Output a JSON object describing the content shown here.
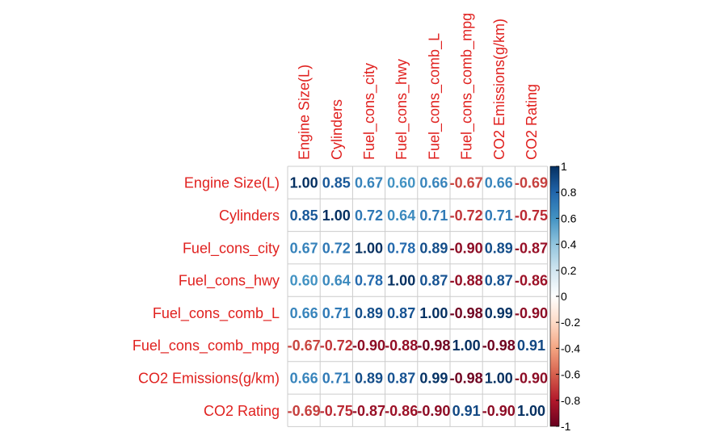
{
  "chart_data": {
    "type": "heatmap",
    "variables": [
      "Engine Size(L)",
      "Cylinders",
      "Fuel_cons_city",
      "Fuel_cons_hwy",
      "Fuel_cons_comb_L",
      "Fuel_cons_comb_mpg",
      "CO2 Emissions(g/km)",
      "CO2 Rating"
    ],
    "matrix": [
      [
        1.0,
        0.85,
        0.67,
        0.6,
        0.66,
        -0.67,
        0.66,
        -0.69
      ],
      [
        0.85,
        1.0,
        0.72,
        0.64,
        0.71,
        -0.72,
        0.71,
        -0.75
      ],
      [
        0.67,
        0.72,
        1.0,
        0.78,
        0.89,
        -0.9,
        0.89,
        -0.87
      ],
      [
        0.6,
        0.64,
        0.78,
        1.0,
        0.87,
        -0.88,
        0.87,
        -0.86
      ],
      [
        0.66,
        0.71,
        0.89,
        0.87,
        1.0,
        -0.98,
        0.99,
        -0.9
      ],
      [
        -0.67,
        -0.72,
        -0.9,
        -0.88,
        -0.98,
        1.0,
        -0.98,
        0.91
      ],
      [
        0.66,
        0.71,
        0.89,
        0.87,
        0.99,
        -0.98,
        1.0,
        -0.9
      ],
      [
        -0.69,
        -0.75,
        -0.87,
        -0.86,
        -0.9,
        0.91,
        -0.9,
        1.0
      ]
    ],
    "colorbar": {
      "range": [
        -1,
        1
      ],
      "ticks": [
        "1",
        "0.8",
        "0.6",
        "0.4",
        "0.2",
        "0",
        "-0.2",
        "-0.4",
        "-0.6",
        "-0.8",
        "-1"
      ],
      "colors": [
        "#67001f",
        "#b2182b",
        "#d6604d",
        "#f4a582",
        "#fddbc7",
        "#ffffff",
        "#d1e5f0",
        "#92c5de",
        "#4393c3",
        "#2166ac",
        "#053061"
      ]
    },
    "label_color": "#e0211f",
    "grid_color": "#cccccc"
  }
}
